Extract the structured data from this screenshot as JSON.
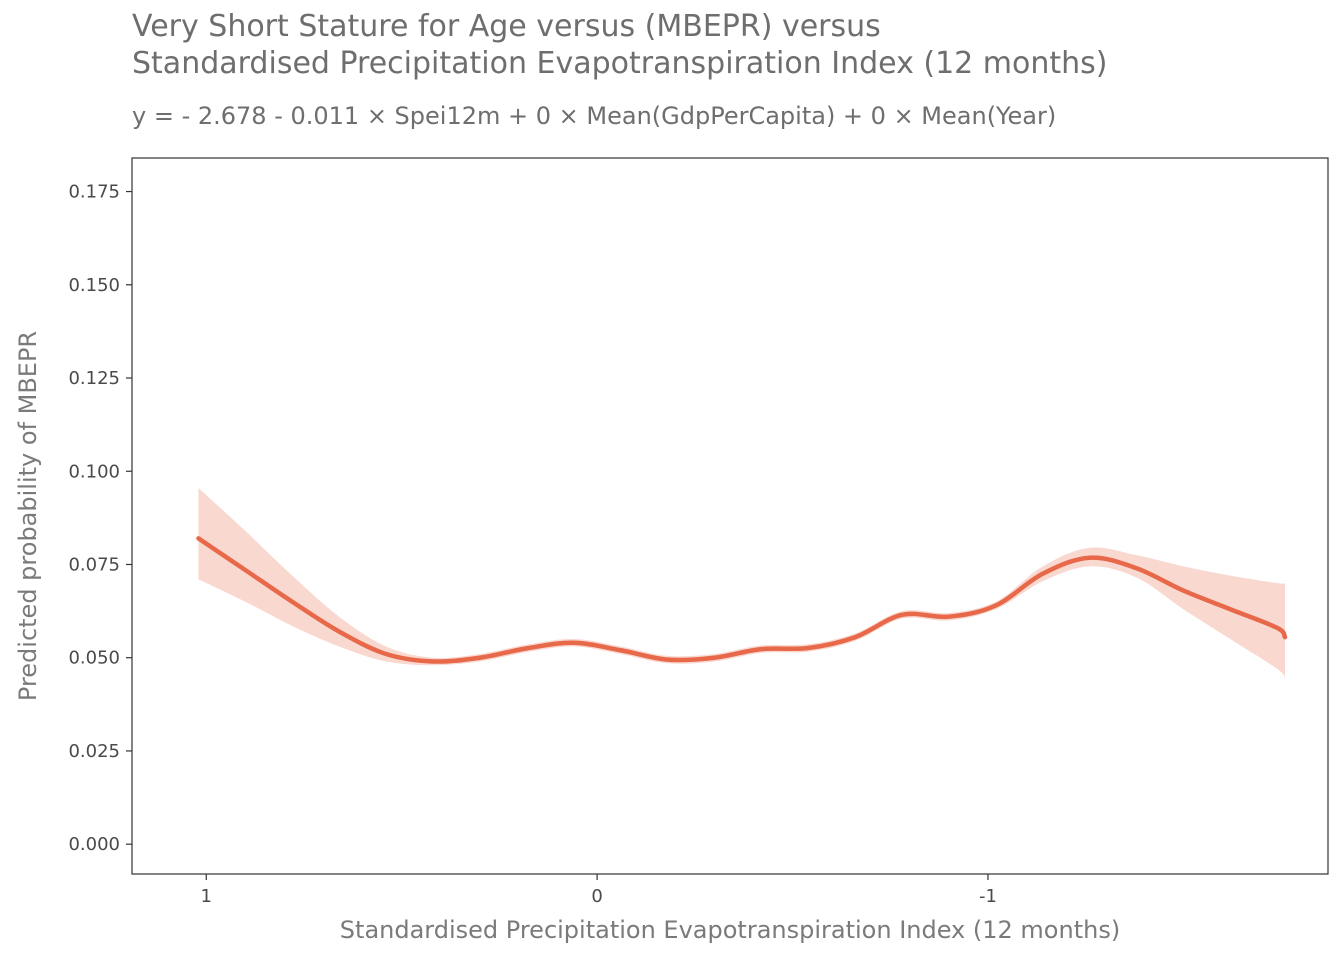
{
  "chart_data": {
    "type": "line",
    "title_line1": "Very Short Stature for Age versus (MBEPR) versus",
    "title_line2": "Standardised Precipitation Evapotranspiration Index (12 months)",
    "subtitle": "y =  - 2.678 - 0.011 × Spei12m + 0 × Mean(GdpPerCapita) + 0 × Mean(Year)",
    "xlabel": "Standardised Precipitation Evapotranspiration Index (12 months)",
    "ylabel": "Predicted probability of MBEPR",
    "x_reversed": true,
    "xlim": [
      1.19,
      -1.87
    ],
    "ylim": [
      -0.008,
      0.184
    ],
    "x_ticks": [
      {
        "value": 1,
        "label": "1"
      },
      {
        "value": 0,
        "label": "0"
      },
      {
        "value": -1,
        "label": "-1"
      }
    ],
    "y_ticks": [
      {
        "value": 0.0,
        "label": "0.000"
      },
      {
        "value": 0.025,
        "label": "0.025"
      },
      {
        "value": 0.05,
        "label": "0.050"
      },
      {
        "value": 0.075,
        "label": "0.075"
      },
      {
        "value": 0.1,
        "label": "0.100"
      },
      {
        "value": 0.125,
        "label": "0.125"
      },
      {
        "value": 0.15,
        "label": "0.150"
      },
      {
        "value": 0.175,
        "label": "0.175"
      }
    ],
    "grid": false,
    "line_color": "#e8684a",
    "band_color": "#f9d8d0",
    "x": [
      1.02,
      0.9,
      0.78,
      0.66,
      0.54,
      0.42,
      0.3,
      0.18,
      0.06,
      -0.06,
      -0.18,
      -0.3,
      -0.42,
      -0.54,
      -0.66,
      -0.78,
      -0.9,
      -1.02,
      -1.14,
      -1.26,
      -1.38,
      -1.5,
      -1.62,
      -1.74,
      -1.76
    ],
    "y": [
      0.082,
      0.0735,
      0.065,
      0.057,
      0.051,
      0.049,
      0.05,
      0.0525,
      0.054,
      0.052,
      0.0495,
      0.05,
      0.0523,
      0.0526,
      0.0555,
      0.0615,
      0.061,
      0.064,
      0.0725,
      0.0768,
      0.074,
      0.068,
      0.063,
      0.058,
      0.0555
    ],
    "upper": [
      0.0955,
      0.084,
      0.072,
      0.061,
      0.053,
      0.05,
      0.051,
      0.0535,
      0.055,
      0.053,
      0.0505,
      0.051,
      0.0533,
      0.0536,
      0.0565,
      0.0625,
      0.062,
      0.065,
      0.0745,
      0.0795,
      0.0775,
      0.0745,
      0.072,
      0.07,
      0.07
    ],
    "lower": [
      0.071,
      0.065,
      0.0585,
      0.053,
      0.049,
      0.048,
      0.049,
      0.0515,
      0.053,
      0.051,
      0.0485,
      0.049,
      0.0513,
      0.0516,
      0.0545,
      0.0605,
      0.06,
      0.063,
      0.0705,
      0.0745,
      0.0715,
      0.063,
      0.055,
      0.047,
      0.0445
    ]
  }
}
